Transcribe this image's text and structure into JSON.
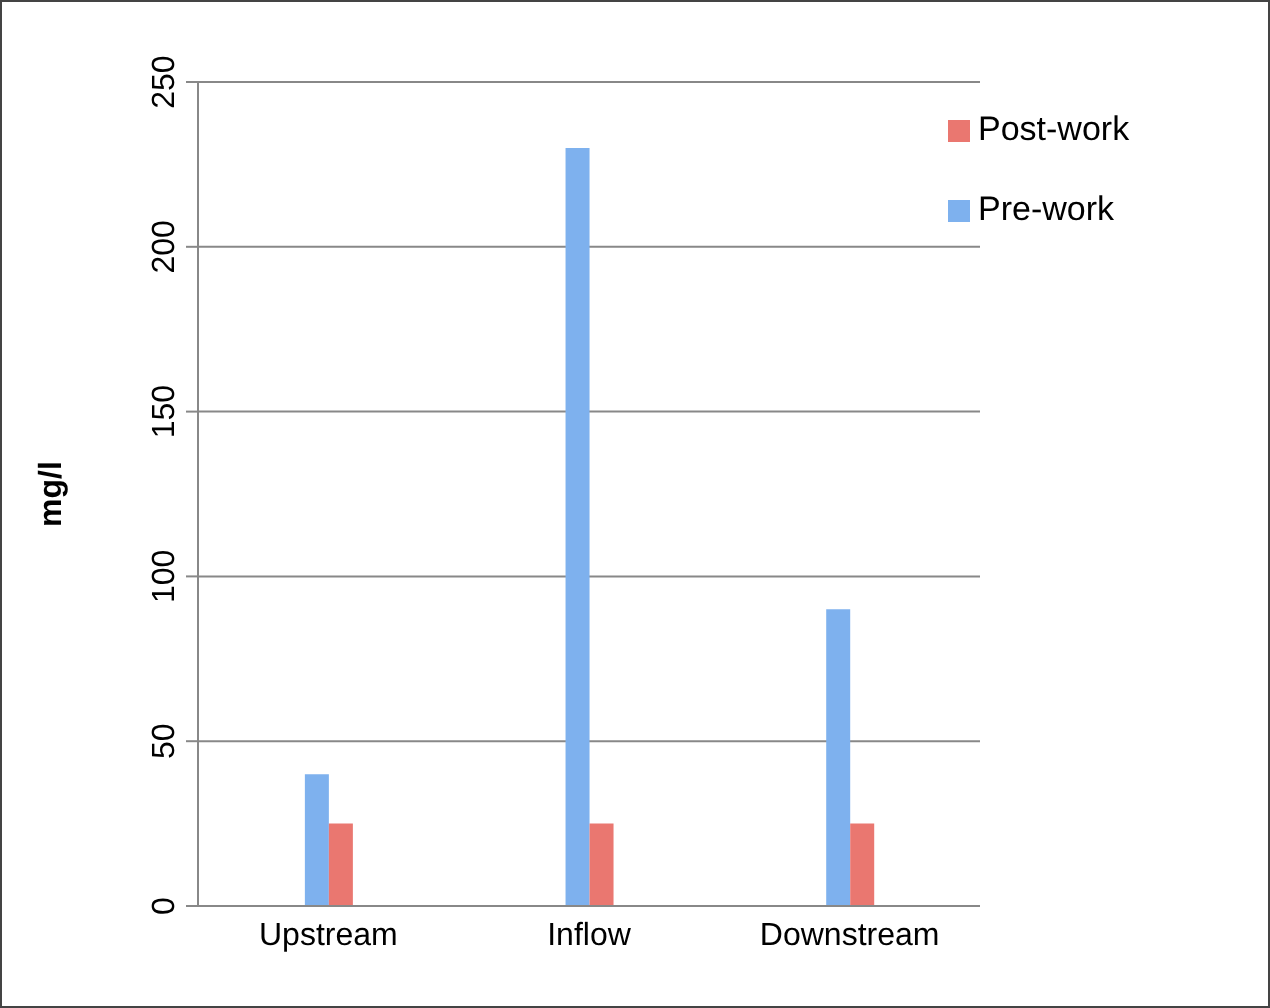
{
  "chart_data": {
    "type": "bar",
    "ylabel": "mg/l",
    "categories": [
      "Upstream",
      "Inflow",
      "Downstream"
    ],
    "series": [
      {
        "name": "Pre-work",
        "color": "#7eb1ee",
        "values": [
          40,
          230,
          90
        ]
      },
      {
        "name": "Post-work",
        "color": "#ea7770",
        "values": [
          25,
          25,
          25
        ]
      }
    ],
    "ylim": [
      0,
      250
    ],
    "yticks": [
      0,
      50,
      100,
      150,
      200,
      250
    ],
    "grid": "y",
    "legend": "top right"
  }
}
